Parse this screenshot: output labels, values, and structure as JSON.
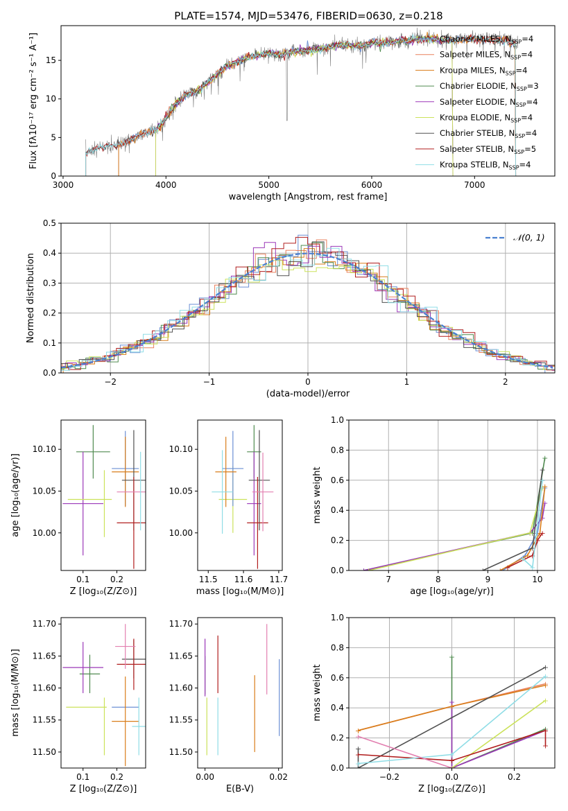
{
  "title": "PLATE=1574, MJD=53476, FIBERID=0630, z=0.218",
  "colors": {
    "chabrier_miles": "#6b8fd4",
    "salpeter_miles": "#e9805c",
    "kroupa_miles": "#d97d1a",
    "chabrier_elodie": "#4f8a4f",
    "salpeter_elodie": "#9b37b8",
    "kroupa_elodie": "#cbe25a",
    "chabrier_stelib": "#505050",
    "salpeter_stelib": "#b01c1c",
    "kroupa_stelib": "#8fdde6",
    "pink": "#e27fb0",
    "gaussian": "#4a80d0",
    "grid": "#b0b0b0"
  },
  "chart_data": [
    {
      "id": "spectrum",
      "type": "line",
      "title": "PLATE=1574, MJD=53476, FIBERID=0630, z=0.218",
      "xlabel": "wavelength [Angstrom, rest frame]",
      "ylabel": "Flux [fλ10⁻¹⁷ erg cm⁻² s⁻¹ A⁻¹]",
      "xlim": [
        2980,
        7780
      ],
      "ylim": [
        0,
        19.5
      ],
      "xticks": [
        "3000",
        "4000",
        "5000",
        "6000",
        "7000"
      ],
      "yticks": [
        "0",
        "5",
        "10",
        "15"
      ],
      "grid": false,
      "legend": "right",
      "series": [
        {
          "name": "Chabrier MILES, N_SSP=4"
        },
        {
          "name": "Salpeter MILES, N_SSP=4"
        },
        {
          "name": "Kroupa MILES, N_SSP=4"
        },
        {
          "name": "Chabrier ELODIE, N_SSP=3"
        },
        {
          "name": "Salpeter ELODIE, N_SSP=4"
        },
        {
          "name": "Kroupa ELODIE, N_SSP=4"
        },
        {
          "name": "Chabrier STELIB, N_SSP=4"
        },
        {
          "name": "Salpeter STELIB, N_SSP=5"
        },
        {
          "name": "Kroupa STELIB, N_SSP=4"
        }
      ],
      "continuum": {
        "x": [
          3220,
          3300,
          3400,
          3500,
          3600,
          3700,
          3800,
          3900,
          4000,
          4100,
          4200,
          4300,
          4400,
          4500,
          4600,
          4700,
          4800,
          4900,
          5000,
          5100,
          5200,
          5300,
          5400,
          5500,
          5600,
          5700,
          5800,
          5900,
          6000,
          6100,
          6200,
          6300,
          6400,
          6500,
          6600,
          6700,
          6800,
          6900,
          7000,
          7100,
          7200,
          7300,
          7400
        ],
        "y": [
          3.0,
          3.5,
          3.8,
          3.9,
          4.3,
          5.0,
          5.6,
          5.9,
          7.5,
          9.5,
          10.5,
          11.0,
          12.0,
          13.3,
          14.3,
          14.7,
          15.5,
          15.6,
          16.0,
          15.7,
          16.0,
          16.2,
          16.3,
          16.5,
          16.8,
          17.0,
          17.0,
          16.8,
          17.3,
          17.2,
          17.4,
          17.6,
          17.6,
          17.8,
          17.8,
          17.6,
          17.5,
          17.8,
          17.8,
          17.7,
          17.6,
          17.6,
          17.2
        ]
      }
    },
    {
      "id": "residuals",
      "type": "line",
      "xlabel": "(data-model)/error",
      "ylabel": "Normed distribution",
      "xlim": [
        -2.5,
        2.5
      ],
      "ylim": [
        0,
        0.5
      ],
      "xticks": [
        -2,
        -1,
        0,
        1,
        2
      ],
      "yticks": [
        0.0,
        0.1,
        0.2,
        0.3,
        0.4,
        0.5
      ],
      "grid": true,
      "legend": "top-right",
      "gaussian_label": "𝒩(0, 1)"
    },
    {
      "id": "age_vs_Z",
      "type": "scatter",
      "xlabel": "Z [log₁₀(Z/Z⊙)]",
      "ylabel": "age  [log₁₀(age/yr)]",
      "xlim": [
        0.035,
        0.285
      ],
      "ylim": [
        9.955,
        10.135
      ],
      "xticks": [
        0.1,
        0.2
      ],
      "yticks": [
        10.0,
        10.05,
        10.1
      ],
      "points": [
        {
          "x": 0.13,
          "y": 10.097,
          "xerr": 0.05,
          "yerr": 0.032,
          "c": "chabrier_elodie"
        },
        {
          "x": 0.1,
          "y": 10.035,
          "xerr": 0.06,
          "yerr": 0.062,
          "c": "salpeter_elodie"
        },
        {
          "x": 0.12,
          "y": 10.04,
          "xerr": 0.065,
          "yerr": 0.0,
          "c": "kroupa_elodie"
        },
        {
          "x": 0.163,
          "y": 10.035,
          "xerr": 0.0,
          "yerr": 0.04,
          "c": "kroupa_elodie"
        },
        {
          "x": 0.225,
          "y": 10.077,
          "xerr": 0.04,
          "yerr": 0.045,
          "c": "chabrier_miles"
        },
        {
          "x": 0.225,
          "y": 10.073,
          "xerr": 0.04,
          "yerr": 0.042,
          "c": "kroupa_miles"
        },
        {
          "x": 0.25,
          "y": 10.063,
          "xerr": 0.035,
          "yerr": 0.06,
          "c": "chabrier_stelib"
        },
        {
          "x": 0.25,
          "y": 10.012,
          "xerr": 0.05,
          "yerr": 0.055,
          "c": "salpeter_stelib"
        },
        {
          "x": 0.25,
          "y": 10.049,
          "xerr": 0.05,
          "yerr": 0.0,
          "c": "pink"
        },
        {
          "x": 0.27,
          "y": 10.05,
          "xerr": 0.0,
          "yerr": 0.047,
          "c": "kroupa_stelib"
        }
      ]
    },
    {
      "id": "age_vs_mass",
      "type": "scatter",
      "xlabel": "mass [log₁₀(M/M⊙)]",
      "ylabel": "",
      "xlim": [
        11.47,
        11.71
      ],
      "ylim": [
        9.955,
        10.135
      ],
      "xticks": [
        11.5,
        11.6,
        11.7
      ],
      "yticks": [
        10.0,
        10.05,
        10.1
      ],
      "points": [
        {
          "x": 11.63,
          "y": 10.097,
          "xerr": 0.02,
          "yerr": 0.032,
          "c": "chabrier_elodie"
        },
        {
          "x": 11.63,
          "y": 10.035,
          "xerr": 0.02,
          "yerr": 0.062,
          "c": "salpeter_elodie"
        },
        {
          "x": 11.57,
          "y": 10.04,
          "xerr": 0.04,
          "yerr": 0.04,
          "c": "kroupa_elodie"
        },
        {
          "x": 11.57,
          "y": 10.077,
          "xerr": 0.03,
          "yerr": 0.045,
          "c": "chabrier_miles"
        },
        {
          "x": 11.55,
          "y": 10.073,
          "xerr": 0.03,
          "yerr": 0.042,
          "c": "kroupa_miles"
        },
        {
          "x": 11.645,
          "y": 10.063,
          "xerr": 0.03,
          "yerr": 0.06,
          "c": "chabrier_stelib"
        },
        {
          "x": 11.64,
          "y": 10.012,
          "xerr": 0.03,
          "yerr": 0.055,
          "c": "salpeter_stelib"
        },
        {
          "x": 11.655,
          "y": 10.049,
          "xerr": 0.03,
          "yerr": 0.047,
          "c": "pink"
        },
        {
          "x": 11.54,
          "y": 10.049,
          "xerr": 0.03,
          "yerr": 0.05,
          "c": "kroupa_stelib"
        }
      ]
    },
    {
      "id": "weight_vs_age",
      "type": "line",
      "xlabel": "age  [log₁₀(age/yr)]",
      "ylabel": "mass weight",
      "xlim": [
        6.2,
        10.35
      ],
      "ylim": [
        0,
        1.0
      ],
      "xticks": [
        7,
        8,
        9,
        10
      ],
      "yticks": [
        0.0,
        0.2,
        0.4,
        0.6,
        0.8,
        1.0
      ],
      "grid": true,
      "series": [
        {
          "c": "chabrier_elodie",
          "x": [
            6.5,
            9.9,
            10.15
          ],
          "y": [
            0.0,
            0.25,
            0.75
          ]
        },
        {
          "c": "salpeter_elodie",
          "x": [
            6.5,
            9.85,
            10.1,
            10.15
          ],
          "y": [
            0.0,
            0.25,
            0.35,
            0.45
          ]
        },
        {
          "c": "kroupa_elodie",
          "x": [
            6.6,
            9.85,
            10.1
          ],
          "y": [
            0.0,
            0.25,
            0.55
          ]
        },
        {
          "c": "chabrier_miles",
          "x": [
            9.3,
            9.75,
            10.0,
            10.15
          ],
          "y": [
            0.0,
            0.1,
            0.25,
            0.55
          ]
        },
        {
          "c": "kroupa_miles",
          "x": [
            9.25,
            9.8,
            10.05,
            10.15
          ],
          "y": [
            0.0,
            0.1,
            0.25,
            0.56
          ]
        },
        {
          "c": "chabrier_stelib",
          "x": [
            8.9,
            9.9,
            10.1
          ],
          "y": [
            0.0,
            0.15,
            0.67
          ]
        },
        {
          "c": "salpeter_stelib",
          "x": [
            9.4,
            9.9,
            10.0,
            10.1
          ],
          "y": [
            0.02,
            0.1,
            0.2,
            0.25
          ]
        },
        {
          "c": "kroupa_stelib",
          "x": [
            9.7,
            9.9,
            10.1
          ],
          "y": [
            0.08,
            0.02,
            0.6
          ]
        }
      ]
    },
    {
      "id": "mass_vs_Z",
      "type": "scatter",
      "xlabel": "Z [log₁₀(Z/Z⊙)]",
      "ylabel": "mass [log₁₀(M/M⊙)]",
      "xlim": [
        0.035,
        0.285
      ],
      "ylim": [
        11.475,
        11.71
      ],
      "xticks": [
        0.1,
        0.2
      ],
      "yticks": [
        11.5,
        11.55,
        11.6,
        11.65,
        11.7
      ],
      "points": [
        {
          "x": 0.12,
          "y": 11.622,
          "xerr": 0.03,
          "yerr": 0.03,
          "c": "chabrier_elodie"
        },
        {
          "x": 0.1,
          "y": 11.632,
          "xerr": 0.06,
          "yerr": 0.04,
          "c": "salpeter_elodie"
        },
        {
          "x": 0.11,
          "y": 11.57,
          "xerr": 0.06,
          "yerr": 0.0,
          "c": "kroupa_elodie"
        },
        {
          "x": 0.163,
          "y": 11.54,
          "xerr": 0.0,
          "yerr": 0.045,
          "c": "kroupa_elodie"
        },
        {
          "x": 0.225,
          "y": 11.57,
          "xerr": 0.04,
          "yerr": 0.0,
          "c": "chabrier_miles"
        },
        {
          "x": 0.225,
          "y": 11.548,
          "xerr": 0.04,
          "yerr": 0.07,
          "c": "kroupa_miles"
        },
        {
          "x": 0.25,
          "y": 11.645,
          "xerr": 0.035,
          "yerr": 0.03,
          "c": "chabrier_stelib"
        },
        {
          "x": 0.25,
          "y": 11.637,
          "xerr": 0.05,
          "yerr": 0.04,
          "c": "salpeter_stelib"
        },
        {
          "x": 0.225,
          "y": 11.665,
          "xerr": 0.03,
          "yerr": 0.035,
          "c": "pink"
        },
        {
          "x": 0.265,
          "y": 11.54,
          "xerr": 0.02,
          "yerr": 0.045,
          "c": "kroupa_stelib"
        }
      ]
    },
    {
      "id": "mass_vs_ebv",
      "type": "scatter",
      "xlabel": "E(B-V)",
      "ylabel": "",
      "xlim": [
        -0.002,
        0.021
      ],
      "ylim": [
        11.475,
        11.71
      ],
      "xticks": [
        0.0,
        0.02
      ],
      "yticks": [
        11.5,
        11.55,
        11.6,
        11.65,
        11.7
      ],
      "points": [
        {
          "x": 0.0,
          "y": 11.62,
          "xerr": 0,
          "yerr": 0.03,
          "c": "chabrier_elodie"
        },
        {
          "x": 0.0,
          "y": 11.632,
          "xerr": 0,
          "yerr": 0.045,
          "c": "salpeter_elodie"
        },
        {
          "x": 0.0005,
          "y": 11.54,
          "xerr": 0,
          "yerr": 0.045,
          "c": "kroupa_elodie"
        },
        {
          "x": 0.0035,
          "y": 11.54,
          "xerr": 0,
          "yerr": 0.045,
          "c": "kroupa_stelib"
        },
        {
          "x": 0.0035,
          "y": 11.637,
          "xerr": 0,
          "yerr": 0.045,
          "c": "salpeter_stelib"
        },
        {
          "x": 0.0135,
          "y": 11.56,
          "xerr": 0,
          "yerr": 0.06,
          "c": "kroupa_miles"
        },
        {
          "x": 0.0168,
          "y": 11.645,
          "xerr": 0,
          "yerr": 0.055,
          "c": "pink"
        },
        {
          "x": 0.0202,
          "y": 11.585,
          "xerr": 0,
          "yerr": 0.06,
          "c": "chabrier_miles"
        }
      ]
    },
    {
      "id": "weight_vs_Z",
      "type": "line",
      "xlabel": "Z [log₁₀(Z/Z⊙)]",
      "ylabel": "mass weight",
      "xlim": [
        -0.33,
        0.33
      ],
      "ylim": [
        0,
        1.0
      ],
      "xticks": [
        -0.2,
        0.0,
        0.2
      ],
      "yticks": [
        0.0,
        0.2,
        0.4,
        0.6,
        0.8,
        1.0
      ],
      "grid": true,
      "series": [
        {
          "c": "chabrier_elodie",
          "x": [
            0.0,
            0.0,
            0.3
          ],
          "y": [
            0.74,
            0.0,
            0.26
          ]
        },
        {
          "c": "salpeter_elodie",
          "x": [
            0.0,
            0.0,
            0.3
          ],
          "y": [
            0.44,
            0.0,
            0.25
          ]
        },
        {
          "c": "kroupa_elodie",
          "x": [
            0.0,
            0.3
          ],
          "y": [
            0.0,
            0.45
          ]
        },
        {
          "c": "salpeter_miles",
          "x": [
            -0.3,
            0.0,
            0.3
          ],
          "y": [
            0.25,
            0.41,
            0.56
          ]
        },
        {
          "c": "kroupa_miles",
          "x": [
            -0.3,
            0.0,
            0.3
          ],
          "y": [
            0.25,
            0.41,
            0.55
          ]
        },
        {
          "c": "chabrier_stelib",
          "x": [
            -0.3,
            -0.3,
            0.3
          ],
          "y": [
            0.13,
            0.0,
            0.67
          ]
        },
        {
          "c": "salpeter_stelib",
          "x": [
            -0.3,
            0.0,
            0.0,
            0.3,
            0.3
          ],
          "y": [
            0.09,
            0.05,
            0.05,
            0.25,
            0.15
          ]
        },
        {
          "c": "kroupa_stelib",
          "x": [
            -0.3,
            0.0,
            0.3
          ],
          "y": [
            0.03,
            0.09,
            0.61
          ]
        },
        {
          "c": "pink",
          "x": [
            -0.3,
            0.0
          ],
          "y": [
            0.21,
            0.0
          ]
        }
      ]
    }
  ]
}
